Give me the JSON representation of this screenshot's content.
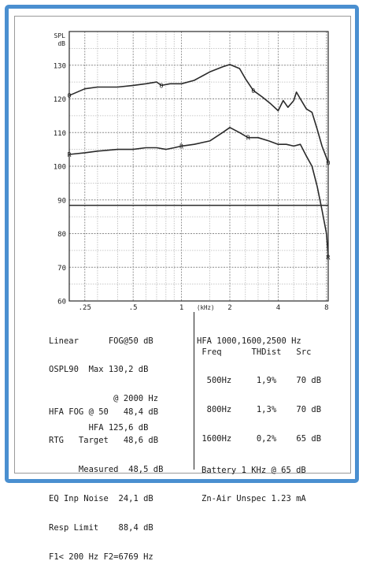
{
  "chart_data": {
    "type": "line",
    "title": "",
    "ylabel": "SPL dB",
    "xlabel": "(kHz)",
    "xscale": "log",
    "xlim": [
      0.2,
      8.2
    ],
    "ylim": [
      60,
      140
    ],
    "grid": true,
    "x_ticks": [
      {
        "v": 0.25,
        "label": ".25"
      },
      {
        "v": 0.5,
        "label": ".5"
      },
      {
        "v": 1,
        "label": "1"
      },
      {
        "v": 2,
        "label": "2"
      },
      {
        "v": 4,
        "label": "4"
      },
      {
        "v": 8,
        "label": "8"
      }
    ],
    "x_unit_label": "(kHz)",
    "y_ticks": [
      60,
      70,
      80,
      90,
      100,
      110,
      120,
      130
    ],
    "y_axis_title": [
      "SPL",
      "dB"
    ],
    "reference_line": {
      "value": 88.4,
      "label": "Resp Limit"
    },
    "series": [
      {
        "marker": "O",
        "color": "#2a2a2a",
        "x": [
          0.2,
          0.25,
          0.3,
          0.4,
          0.5,
          0.6,
          0.7,
          0.75,
          0.85,
          1.0,
          1.2,
          1.5,
          1.8,
          2.0,
          2.3,
          2.5,
          2.8,
          3.2,
          3.6,
          4.0,
          4.3,
          4.6,
          5.0,
          5.2,
          5.5,
          6.0,
          6.5,
          7.0,
          7.5,
          8.0,
          8.2
        ],
        "y": [
          121,
          123,
          123.5,
          123.5,
          124,
          124.5,
          125,
          124,
          124.5,
          124.5,
          125.5,
          128,
          129.5,
          130.2,
          129,
          126,
          122.5,
          120.5,
          118.5,
          116.5,
          119.5,
          117.5,
          119.5,
          122,
          120,
          117,
          116,
          111,
          106,
          102.5,
          101
        ]
      },
      {
        "marker": "R",
        "color": "#2a2a2a",
        "x": [
          0.2,
          0.25,
          0.3,
          0.4,
          0.5,
          0.6,
          0.7,
          0.8,
          0.9,
          1.0,
          1.2,
          1.5,
          1.8,
          2.0,
          2.3,
          2.6,
          3.0,
          3.5,
          4.0,
          4.5,
          5.0,
          5.5,
          6.0,
          6.5,
          7.0,
          7.5,
          8.0,
          8.2
        ],
        "y": [
          103.5,
          104,
          104.5,
          105,
          105,
          105.5,
          105.5,
          105,
          105.5,
          106,
          106.5,
          107.5,
          110,
          111.5,
          110,
          108.5,
          108.5,
          107.5,
          106.5,
          106.5,
          106,
          106.5,
          103,
          100,
          94,
          87,
          80,
          73
        ]
      }
    ]
  },
  "specs": {
    "left_top": [
      "Linear      FOG@50 dB",
      "OSPL90  Max 130,2 dB",
      "             @ 2000 Hz",
      "        HFA 125,6 dB"
    ],
    "left_bottom": [
      "HFA FOG @ 50   48,4 dB",
      "RTG   Target   48,6 dB",
      "      Measured  48,5 dB",
      "EQ Inp Noise  24,1 dB",
      "Resp Limit    88,4 dB",
      "F1< 200 Hz F2=6769 Hz"
    ],
    "right_header": "HFA 1000,1600,2500 Hz",
    "right_table": [
      " Freq      THDist   Src",
      "  500Hz     1,9%    70 dB",
      "  800Hz     1,3%    70 dB",
      " 1600Hz     0,2%    65 dB"
    ],
    "right_bottom": [
      "Battery 1 KHz @ 65 dB",
      "Zn-Air Unspec 1.23 mA"
    ]
  }
}
